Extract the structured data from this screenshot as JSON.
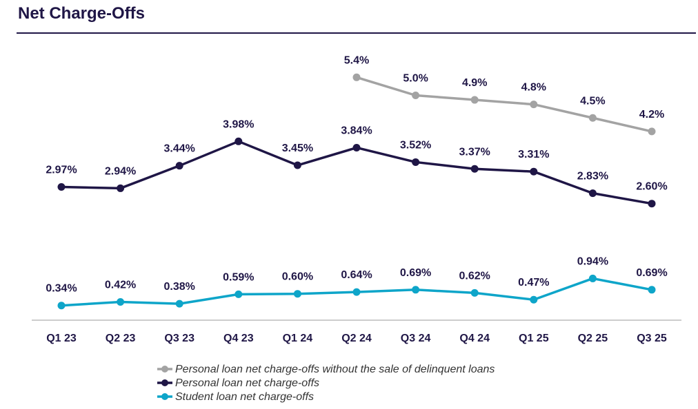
{
  "chart_data": {
    "type": "line",
    "title": "Net Charge-Offs",
    "xlabel": "",
    "ylabel": "",
    "ylim": [
      0,
      7
    ],
    "grid": false,
    "legend_position": "bottom",
    "categories": [
      "Q1 23",
      "Q2 23",
      "Q3 23",
      "Q4 23",
      "Q1 24",
      "Q2 24",
      "Q3 24",
      "Q4 24",
      "Q1 25",
      "Q2 25",
      "Q3 25"
    ],
    "series": [
      {
        "name": "Personal loan net charge-offs without the sale of delinquent loans",
        "color": "#a3a3a3",
        "values": [
          null,
          null,
          null,
          null,
          null,
          5.4,
          5.0,
          4.9,
          4.8,
          4.5,
          4.2
        ],
        "labels": [
          null,
          null,
          null,
          null,
          null,
          "5.4%",
          "5.0%",
          "4.9%",
          "4.8%",
          "4.5%",
          "4.2%"
        ]
      },
      {
        "name": "Personal loan net charge-offs",
        "color": "#1f1646",
        "values": [
          2.97,
          2.94,
          3.44,
          3.98,
          3.45,
          3.84,
          3.52,
          3.37,
          3.31,
          2.83,
          2.6
        ],
        "labels": [
          "2.97%",
          "2.94%",
          "3.44%",
          "3.98%",
          "3.45%",
          "3.84%",
          "3.52%",
          "3.37%",
          "3.31%",
          "2.83%",
          "2.60%"
        ]
      },
      {
        "name": "Student loan net charge-offs",
        "color": "#0ea5c9",
        "values": [
          0.34,
          0.42,
          0.38,
          0.59,
          0.6,
          0.64,
          0.69,
          0.62,
          0.47,
          0.94,
          0.69
        ],
        "labels": [
          "0.34%",
          "0.42%",
          "0.38%",
          "0.59%",
          "0.60%",
          "0.64%",
          "0.69%",
          "0.62%",
          "0.47%",
          "0.94%",
          "0.69%"
        ]
      }
    ]
  }
}
